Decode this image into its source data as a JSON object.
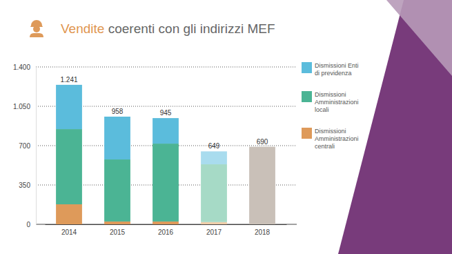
{
  "chart_data": {
    "type": "bar",
    "title": "Vendite coerenti con gli indirizzi MEF",
    "categories": [
      "2014",
      "2015",
      "2016",
      "2017",
      "2018"
    ],
    "series": [
      {
        "name": "Dismissioni Amministrazioni centrali",
        "color": "#de9a5a",
        "colors": [
          "#de9a5a",
          "#de9a5a",
          "#de9a5a",
          "#efcda9",
          "#de9a5a"
        ],
        "values": [
          178,
          25,
          25,
          20,
          null
        ]
      },
      {
        "name": "Dismissioni Amministrazioni locali",
        "color": "#4bb494",
        "colors": [
          "#4bb494",
          "#4bb494",
          "#4bb494",
          "#a6dac6",
          "#4bb494"
        ],
        "values": [
          669,
          552,
          693,
          514,
          null
        ]
      },
      {
        "name": "Dismissioni Enti di previdenza",
        "color": "#5bbcdc",
        "colors": [
          "#5bbcdc",
          "#5bbcdc",
          "#5bbcdc",
          "#a9dcee",
          "#5bbcdc"
        ],
        "values": [
          394,
          381,
          227,
          115,
          null
        ]
      },
      {
        "color": "#c9c0b8",
        "values": [
          null,
          null,
          null,
          null,
          690
        ]
      }
    ],
    "totals": [
      1241,
      958,
      945,
      649,
      690
    ],
    "total_labels": [
      "1.241",
      "958",
      "945",
      "649",
      "690"
    ],
    "ylim": [
      0,
      1400
    ],
    "yticks": [
      0,
      350,
      700,
      {
        "value": 1050,
        "label": "1.050"
      },
      {
        "value": 1400,
        "label": "1.400"
      }
    ],
    "grid": true,
    "stacked": true,
    "legend": "right"
  }
}
